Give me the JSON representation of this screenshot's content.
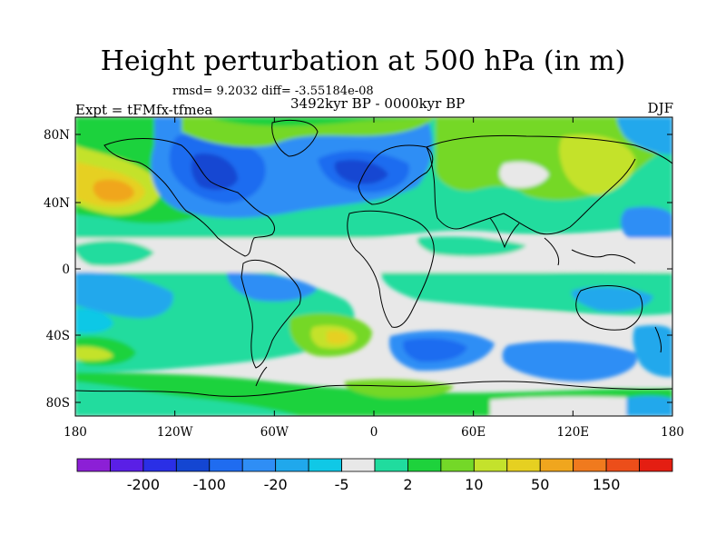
{
  "title": "Height perturbation at 500 hPa (in m)",
  "stats": "rmsd= 9.2032 diff= -3.55184e-08",
  "expt": "Expt = tFMfx-tfmea",
  "period": "3492kyr BP - 0000kyr BP",
  "season": "DJF",
  "lat_ticks": [
    "80N",
    "40N",
    "0",
    "40S",
    "80S"
  ],
  "lon_ticks": [
    "180",
    "120W",
    "60W",
    "0",
    "60E",
    "120E",
    "180"
  ],
  "colorbar": {
    "colors": [
      "#8c1fd6",
      "#5a1fe6",
      "#2a2fe6",
      "#1446d2",
      "#1f6cf0",
      "#2f8ef5",
      "#20a8ec",
      "#10c8e6",
      "#e8e8e8",
      "#20dc9e",
      "#1ed23c",
      "#74d828",
      "#c4e22c",
      "#e6d021",
      "#f0a61e",
      "#f07a1e",
      "#ec4e1a",
      "#e41e12"
    ],
    "labels": [
      "-200",
      "-100",
      "-20",
      "-5",
      "2",
      "10",
      "50",
      "150"
    ]
  },
  "palette": {
    "background": "#e8e8e8",
    "teal": "#20dc9e",
    "green": "#1ed23c",
    "lightgreen": "#74d828",
    "yellowgreen": "#c4e22c",
    "yellow": "#e6d021",
    "orange": "#f0a61e",
    "cyan": "#10c8e6",
    "skyblue": "#20a8ec",
    "blue": "#2f8ef5",
    "deepblue": "#1f6cf0",
    "navy": "#1446d2"
  }
}
